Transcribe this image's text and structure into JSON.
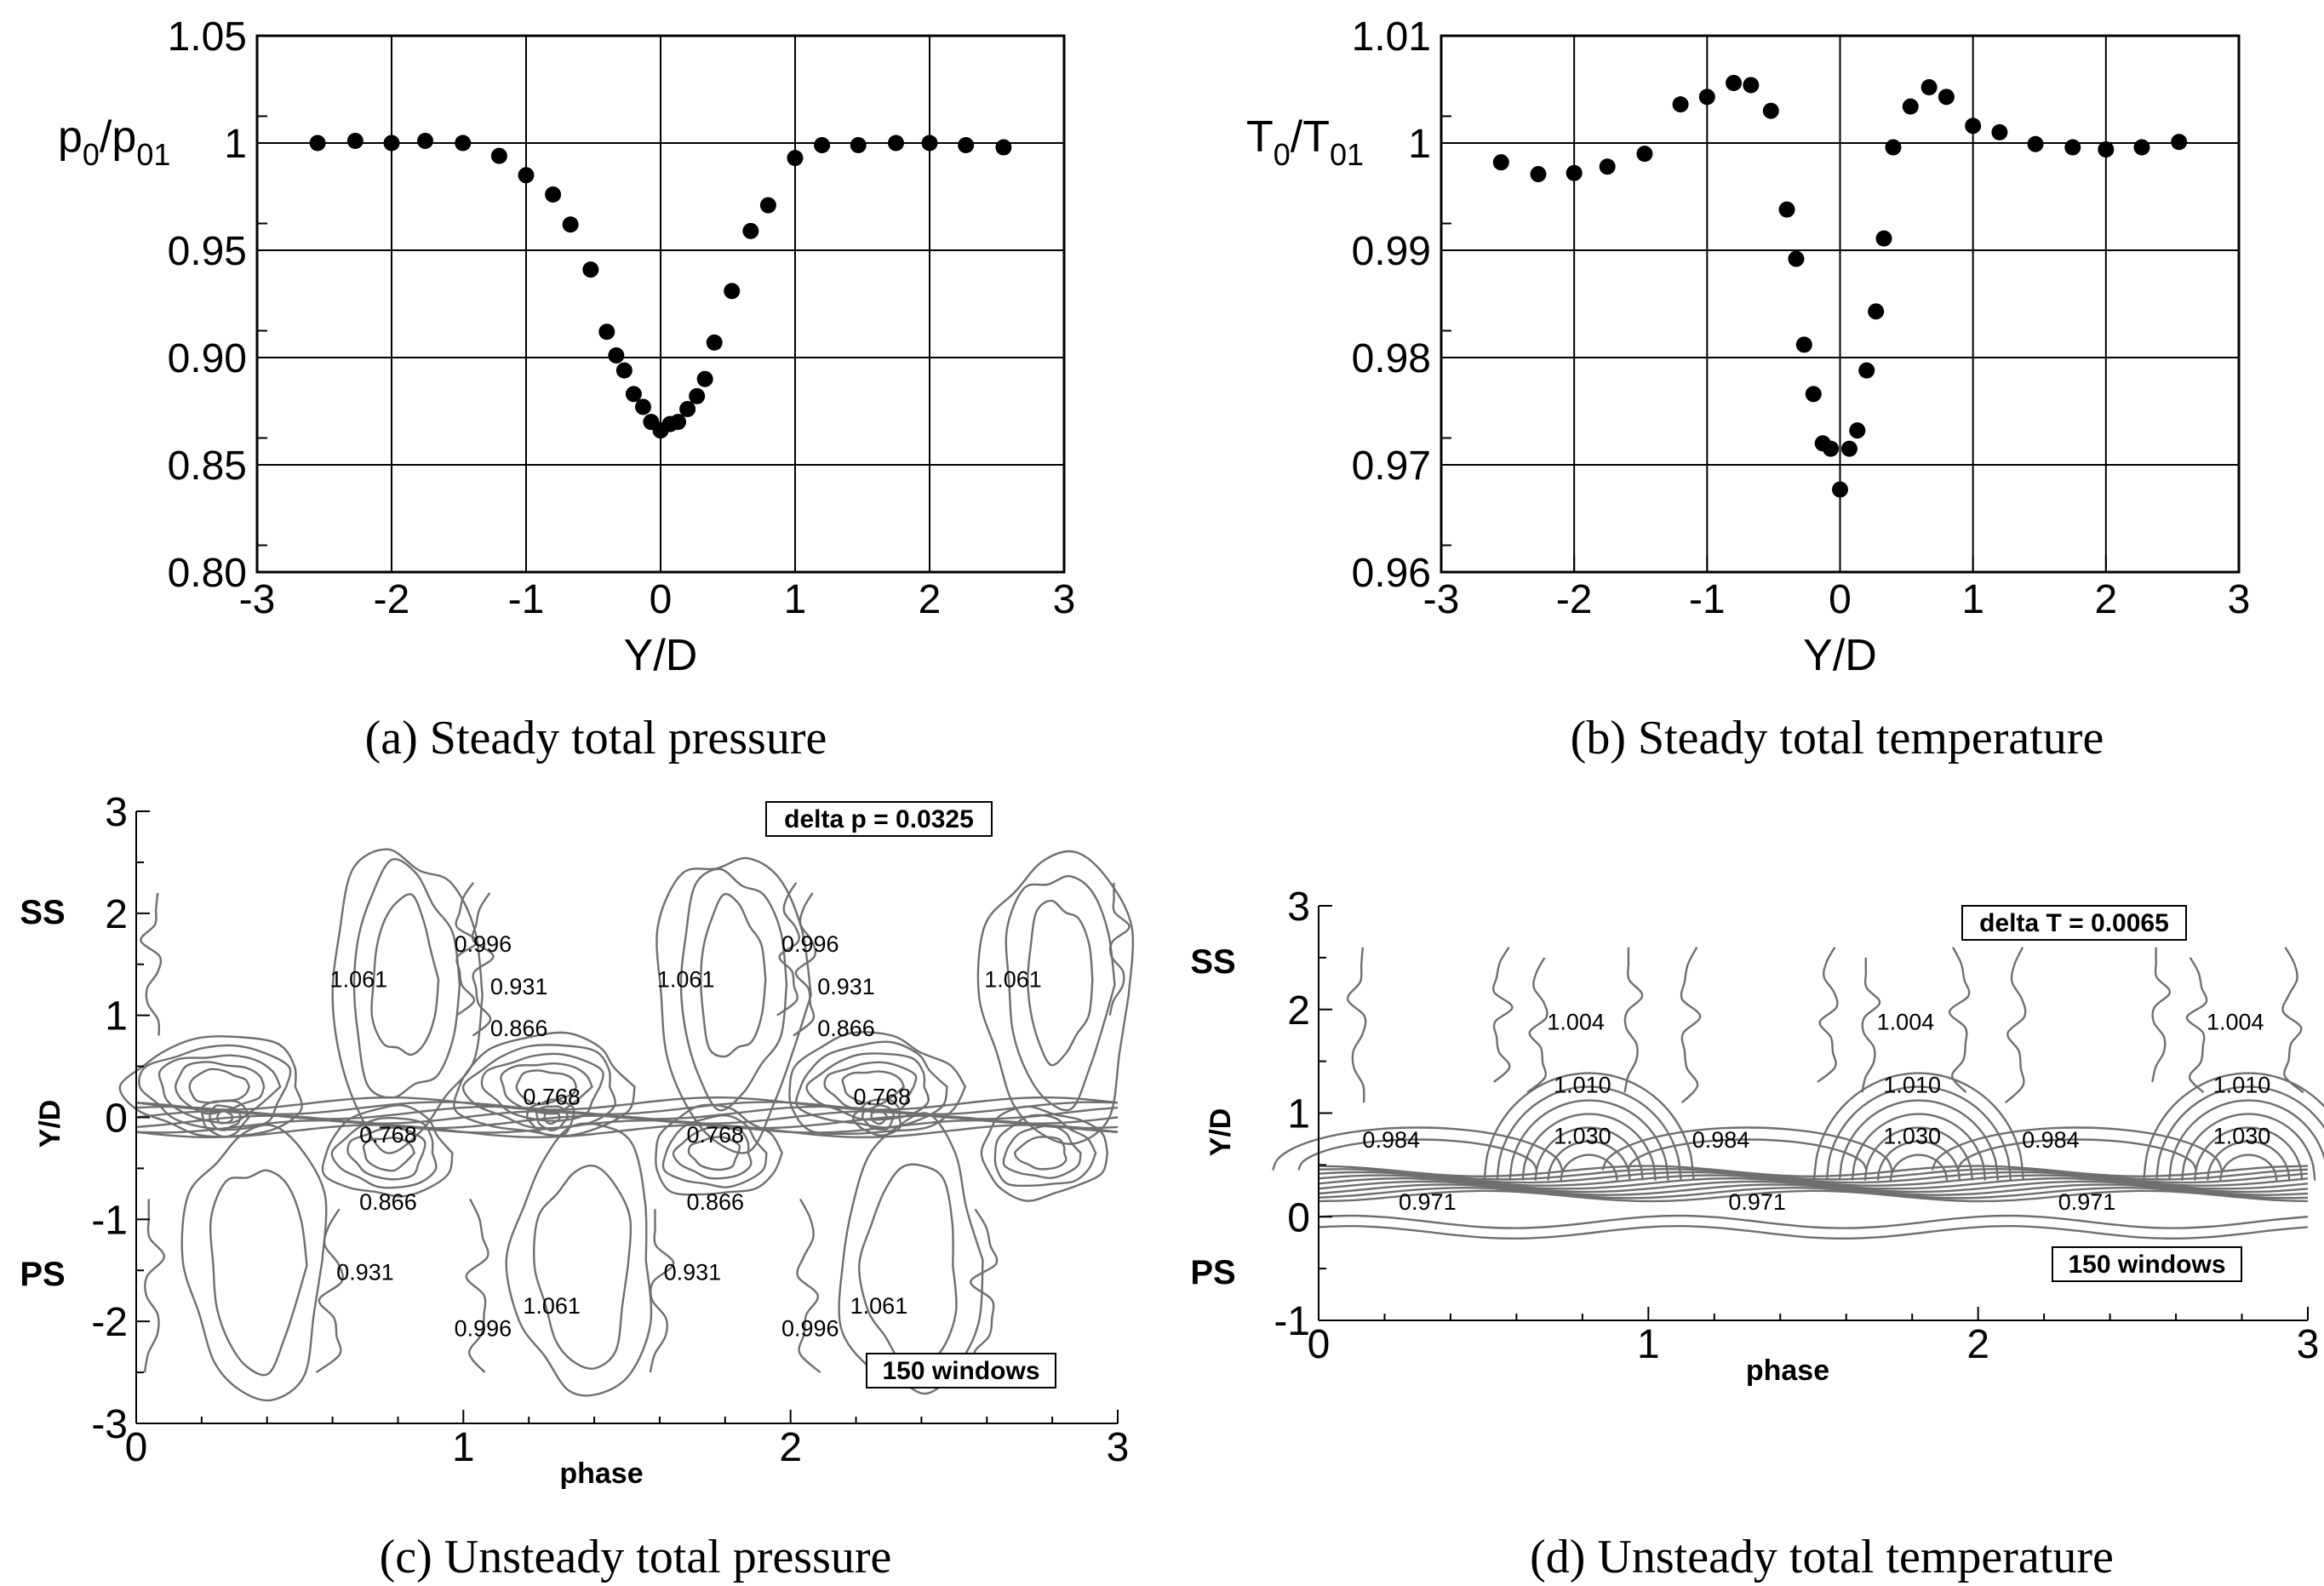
{
  "chart_data": [
    {
      "id": "a",
      "type": "scatter",
      "caption": "(a) Steady total pressure",
      "xlabel": "Y/D",
      "ylabel": {
        "base": "p",
        "sub1": "0",
        "mid": "/p",
        "sub2": "01"
      },
      "xlim": [
        -3,
        3
      ],
      "ylim": [
        0.8,
        1.05
      ],
      "xticks": [
        "-3",
        "-2",
        "-1",
        "0",
        "1",
        "2",
        "3"
      ],
      "yticks": [
        "0.80",
        "0.85",
        "0.90",
        "0.95",
        "1",
        "1.05"
      ],
      "grid": true,
      "points": [
        [
          -2.55,
          1.0
        ],
        [
          -2.27,
          1.001
        ],
        [
          -2.0,
          1.0
        ],
        [
          -1.75,
          1.001
        ],
        [
          -1.47,
          1.0
        ],
        [
          -1.2,
          0.994
        ],
        [
          -1.0,
          0.985
        ],
        [
          -0.8,
          0.976
        ],
        [
          -0.67,
          0.962
        ],
        [
          -0.52,
          0.941
        ],
        [
          -0.4,
          0.912
        ],
        [
          -0.33,
          0.901
        ],
        [
          -0.27,
          0.894
        ],
        [
          -0.2,
          0.883
        ],
        [
          -0.13,
          0.877
        ],
        [
          -0.07,
          0.87
        ],
        [
          0.0,
          0.866
        ],
        [
          0.07,
          0.869
        ],
        [
          0.13,
          0.87
        ],
        [
          0.2,
          0.876
        ],
        [
          0.27,
          0.882
        ],
        [
          0.33,
          0.89
        ],
        [
          0.4,
          0.907
        ],
        [
          0.53,
          0.931
        ],
        [
          0.67,
          0.959
        ],
        [
          0.8,
          0.971
        ],
        [
          1.0,
          0.993
        ],
        [
          1.2,
          0.999
        ],
        [
          1.47,
          0.999
        ],
        [
          1.75,
          1.0
        ],
        [
          2.0,
          1.0
        ],
        [
          2.27,
          0.999
        ],
        [
          2.55,
          0.998
        ]
      ]
    },
    {
      "id": "b",
      "type": "scatter",
      "caption": "(b) Steady total temperature",
      "xlabel": "Y/D",
      "ylabel": {
        "base": "T",
        "sub1": "0",
        "mid": "/T",
        "sub2": "01"
      },
      "xlim": [
        -3,
        3
      ],
      "ylim": [
        0.96,
        1.01
      ],
      "xticks": [
        "-3",
        "-2",
        "-1",
        "0",
        "1",
        "2",
        "3"
      ],
      "yticks": [
        "0.96",
        "0.97",
        "0.98",
        "0.99",
        "1",
        "1.01"
      ],
      "grid": true,
      "points": [
        [
          -2.55,
          0.9982
        ],
        [
          -2.27,
          0.9971
        ],
        [
          -2.0,
          0.9972
        ],
        [
          -1.75,
          0.9978
        ],
        [
          -1.47,
          0.999
        ],
        [
          -1.2,
          1.0036
        ],
        [
          -1.0,
          1.0043
        ],
        [
          -0.8,
          1.0056
        ],
        [
          -0.67,
          1.0054
        ],
        [
          -0.52,
          1.003
        ],
        [
          -0.4,
          0.9938
        ],
        [
          -0.33,
          0.9892
        ],
        [
          -0.27,
          0.9812
        ],
        [
          -0.2,
          0.9766
        ],
        [
          -0.13,
          0.972
        ],
        [
          -0.07,
          0.9715
        ],
        [
          0.0,
          0.9677
        ],
        [
          0.07,
          0.9715
        ],
        [
          0.13,
          0.9732
        ],
        [
          0.2,
          0.9788
        ],
        [
          0.27,
          0.9843
        ],
        [
          0.33,
          0.9911
        ],
        [
          0.4,
          0.9996
        ],
        [
          0.53,
          1.0034
        ],
        [
          0.67,
          1.0052
        ],
        [
          0.8,
          1.0043
        ],
        [
          1.0,
          1.0016
        ],
        [
          1.2,
          1.001
        ],
        [
          1.47,
          0.9999
        ],
        [
          1.75,
          0.9996
        ],
        [
          2.0,
          0.9994
        ],
        [
          2.27,
          0.9996
        ],
        [
          2.55,
          1.0001
        ]
      ]
    },
    {
      "id": "c",
      "type": "contour",
      "caption": "(c) Unsteady total pressure",
      "xlabel": "phase",
      "ylabel": "Y/D",
      "xlim": [
        0,
        3
      ],
      "ylim": [
        -3,
        3
      ],
      "xticks": [
        "0",
        "1",
        "2",
        "3"
      ],
      "yticks": [
        "-3",
        "-2",
        "-1",
        "0",
        "1",
        "2",
        "3"
      ],
      "side_labels": {
        "top": "SS",
        "bottom": "PS"
      },
      "annotation": "delta p = 0.0325",
      "windows": "150 windows",
      "contour_labels": [
        {
          "text": "0.996",
          "x": 1.06,
          "y": 1.7
        },
        {
          "text": "0.996",
          "x": 2.06,
          "y": 1.7
        },
        {
          "text": "1.061",
          "x": 0.68,
          "y": 1.35
        },
        {
          "text": "1.061",
          "x": 1.68,
          "y": 1.35
        },
        {
          "text": "1.061",
          "x": 2.68,
          "y": 1.35
        },
        {
          "text": "0.931",
          "x": 1.17,
          "y": 1.28
        },
        {
          "text": "0.931",
          "x": 2.17,
          "y": 1.28
        },
        {
          "text": "0.866",
          "x": 1.17,
          "y": 0.87
        },
        {
          "text": "0.866",
          "x": 2.17,
          "y": 0.87
        },
        {
          "text": "0.768",
          "x": 1.27,
          "y": 0.2
        },
        {
          "text": "0.768",
          "x": 2.28,
          "y": 0.2
        },
        {
          "text": "0.768",
          "x": 0.77,
          "y": -0.17
        },
        {
          "text": "0.768",
          "x": 1.77,
          "y": -0.17
        },
        {
          "text": "0.866",
          "x": 0.77,
          "y": -0.83
        },
        {
          "text": "0.866",
          "x": 1.77,
          "y": -0.83
        },
        {
          "text": "0.931",
          "x": 0.7,
          "y": -1.52
        },
        {
          "text": "0.931",
          "x": 1.7,
          "y": -1.52
        },
        {
          "text": "1.061",
          "x": 1.27,
          "y": -1.85
        },
        {
          "text": "1.061",
          "x": 2.27,
          "y": -1.85
        },
        {
          "text": "0.996",
          "x": 1.06,
          "y": -2.07
        },
        {
          "text": "0.996",
          "x": 2.06,
          "y": -2.07
        }
      ]
    },
    {
      "id": "d",
      "type": "contour",
      "caption": "(d) Unsteady total temperature",
      "xlabel": "phase",
      "ylabel": "Y/D",
      "xlim": [
        0,
        3
      ],
      "ylim": [
        -1,
        3
      ],
      "xticks": [
        "0",
        "1",
        "2",
        "3"
      ],
      "yticks": [
        "-1",
        "0",
        "1",
        "2",
        "3"
      ],
      "side_labels": {
        "top": "SS",
        "bottom": "PS"
      },
      "annotation": "delta T = 0.0065",
      "windows": "150 windows",
      "contour_labels": [
        {
          "text": "1.004",
          "x": 0.78,
          "y": 1.88
        },
        {
          "text": "1.004",
          "x": 1.78,
          "y": 1.88
        },
        {
          "text": "1.004",
          "x": 2.78,
          "y": 1.88
        },
        {
          "text": "1.010",
          "x": 0.8,
          "y": 1.27
        },
        {
          "text": "1.010",
          "x": 1.8,
          "y": 1.27
        },
        {
          "text": "1.010",
          "x": 2.8,
          "y": 1.27
        },
        {
          "text": "1.030",
          "x": 0.8,
          "y": 0.78
        },
        {
          "text": "1.030",
          "x": 1.8,
          "y": 0.78
        },
        {
          "text": "1.030",
          "x": 2.8,
          "y": 0.78
        },
        {
          "text": "0.984",
          "x": 0.22,
          "y": 0.74
        },
        {
          "text": "0.984",
          "x": 1.22,
          "y": 0.74
        },
        {
          "text": "0.984",
          "x": 2.22,
          "y": 0.74
        },
        {
          "text": "0.971",
          "x": 0.33,
          "y": 0.14
        },
        {
          "text": "0.971",
          "x": 1.33,
          "y": 0.14
        },
        {
          "text": "0.971",
          "x": 2.33,
          "y": 0.14
        }
      ]
    }
  ]
}
